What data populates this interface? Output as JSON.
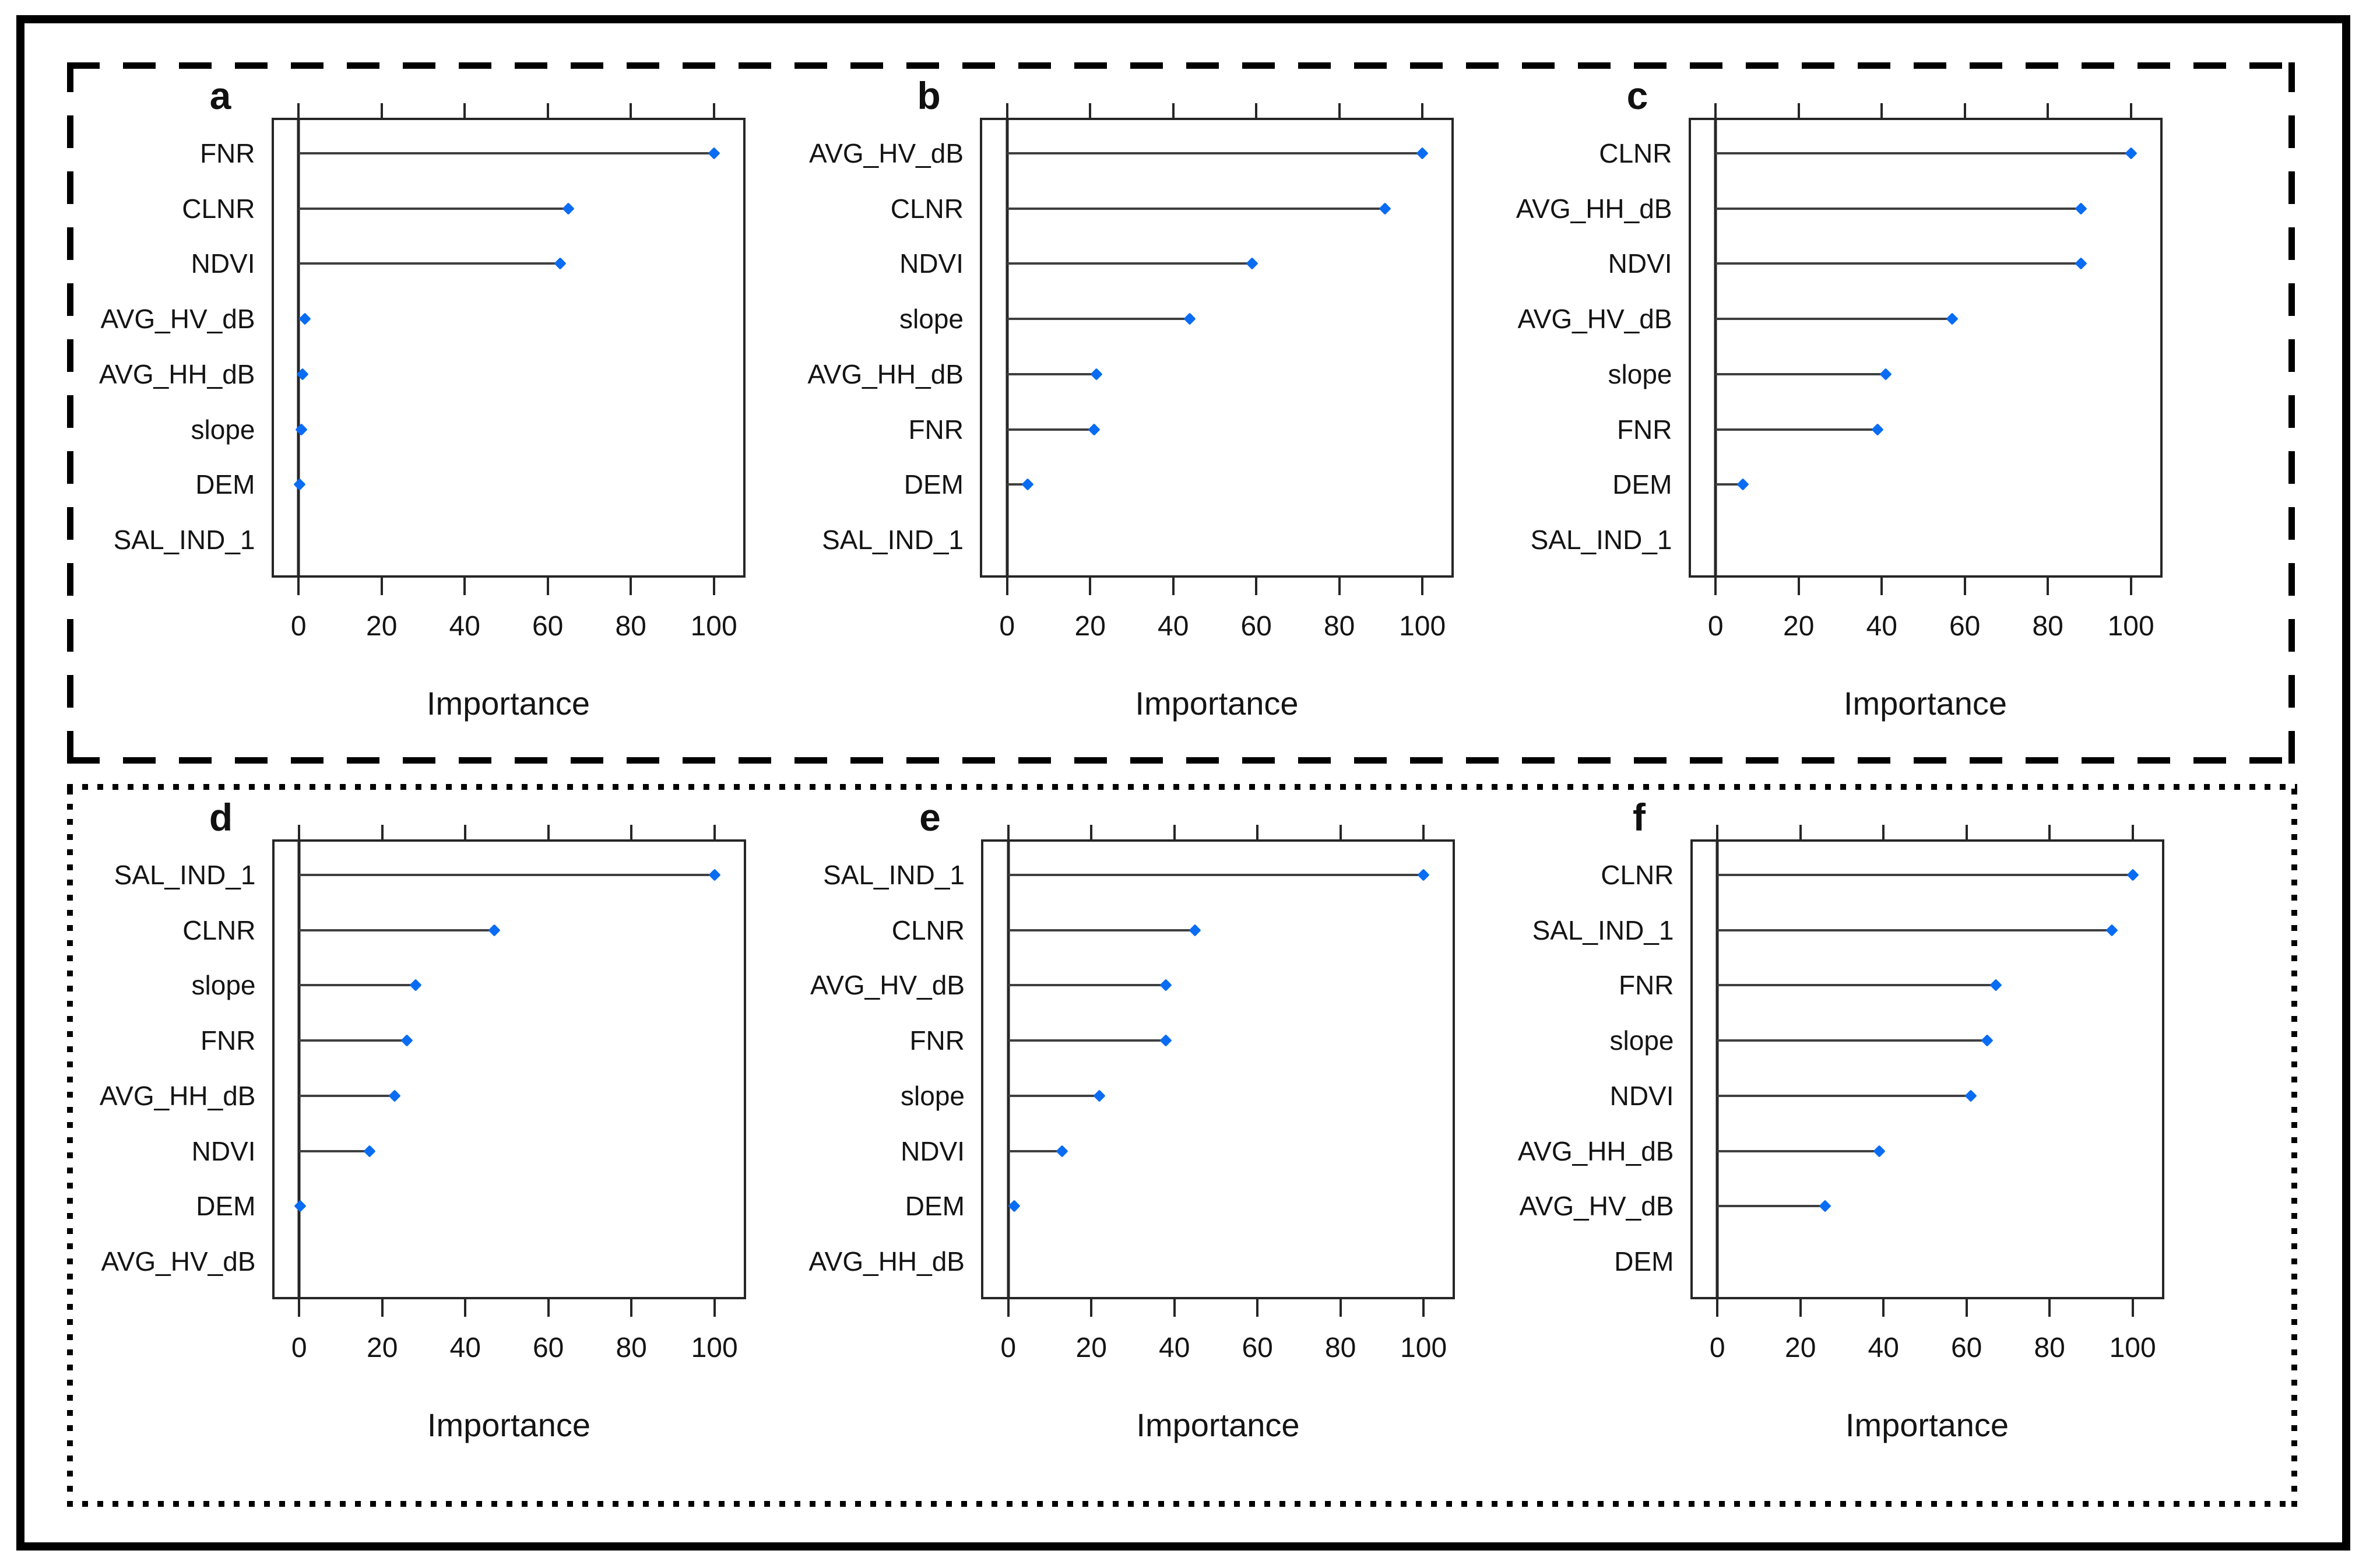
{
  "figure": {
    "xlabel": "Importance",
    "xticks": [
      0,
      20,
      40,
      60,
      80,
      100
    ],
    "xlim": [
      -6,
      107
    ],
    "colors": {
      "marker": "#0a6cf2",
      "stem": "#3f3f3f",
      "axis": "#262626",
      "text": "#141414",
      "frame": "#000000"
    },
    "groups": [
      {
        "name": "top-group",
        "border": "dashed",
        "panels": [
          "a",
          "b",
          "c"
        ]
      },
      {
        "name": "bottom-group",
        "border": "dotted",
        "panels": [
          "d",
          "e",
          "f"
        ]
      }
    ]
  },
  "chart_data": [
    {
      "type": "lollipop",
      "panel": "a",
      "xlabel": "Importance",
      "xlim": [
        -6,
        107
      ],
      "categories": [
        "FNR",
        "CLNR",
        "NDVI",
        "AVG_HV_dB",
        "AVG_HH_dB",
        "slope",
        "DEM",
        "SAL_IND_1"
      ],
      "values": [
        100,
        65,
        63,
        1.5,
        1,
        0.7,
        0.2,
        null
      ]
    },
    {
      "type": "lollipop",
      "panel": "b",
      "xlabel": "Importance",
      "xlim": [
        -6,
        107
      ],
      "categories": [
        "AVG_HV_dB",
        "CLNR",
        "NDVI",
        "slope",
        "AVG_HH_dB",
        "FNR",
        "DEM",
        "SAL_IND_1"
      ],
      "values": [
        100,
        91,
        59,
        44,
        21.5,
        21,
        5,
        null
      ]
    },
    {
      "type": "lollipop",
      "panel": "c",
      "xlabel": "Importance",
      "xlim": [
        -6,
        107
      ],
      "categories": [
        "CLNR",
        "AVG_HH_dB",
        "NDVI",
        "AVG_HV_dB",
        "slope",
        "FNR",
        "DEM",
        "SAL_IND_1"
      ],
      "values": [
        100,
        88,
        88,
        57,
        41,
        39,
        6.5,
        null
      ]
    },
    {
      "type": "lollipop",
      "panel": "d",
      "xlabel": "Importance",
      "xlim": [
        -6,
        107
      ],
      "categories": [
        "SAL_IND_1",
        "CLNR",
        "slope",
        "FNR",
        "AVG_HH_dB",
        "NDVI",
        "DEM",
        "AVG_HV_dB"
      ],
      "values": [
        100,
        47,
        28,
        26,
        23,
        17,
        0.3,
        null
      ]
    },
    {
      "type": "lollipop",
      "panel": "e",
      "xlabel": "Importance",
      "xlim": [
        -6,
        107
      ],
      "categories": [
        "SAL_IND_1",
        "CLNR",
        "AVG_HV_dB",
        "FNR",
        "slope",
        "NDVI",
        "DEM",
        "AVG_HH_dB"
      ],
      "values": [
        100,
        45,
        38,
        38,
        22,
        13,
        1.5,
        null
      ]
    },
    {
      "type": "lollipop",
      "panel": "f",
      "xlabel": "Importance",
      "xlim": [
        -6,
        107
      ],
      "categories": [
        "CLNR",
        "SAL_IND_1",
        "FNR",
        "slope",
        "NDVI",
        "AVG_HH_dB",
        "AVG_HV_dB",
        "DEM"
      ],
      "values": [
        100,
        95,
        67,
        65,
        61,
        39,
        26,
        null
      ]
    }
  ]
}
